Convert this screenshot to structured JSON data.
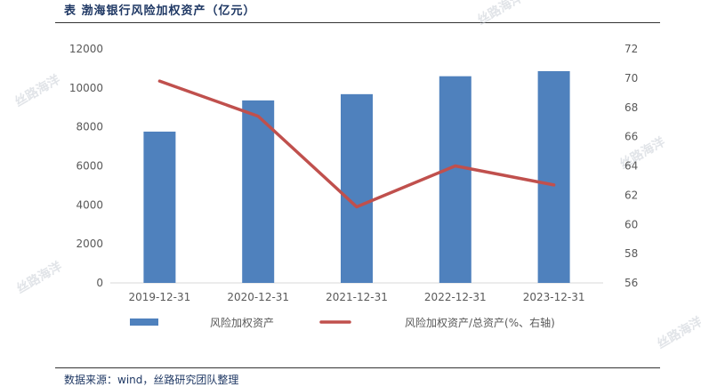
{
  "title": "表  渤海银行风险加权资产（亿元）",
  "source": "数据来源：wind，丝路研究团队整理",
  "watermark": "丝路海洋",
  "colors": {
    "bar": "#4f81bd",
    "line": "#c0504d",
    "axis": "#d9d9d9",
    "text": "#595959"
  },
  "chart_data": {
    "type": "bar",
    "categories": [
      "2019-12-31",
      "2020-12-31",
      "2021-12-31",
      "2022-12-31",
      "2023-12-31"
    ],
    "series": [
      {
        "name": "风险加权资产",
        "type": "bar",
        "axis": "left",
        "values": [
          7760,
          9360,
          9680,
          10600,
          10860
        ]
      },
      {
        "name": "风险加权资产/总资产(%、右轴)",
        "type": "line",
        "axis": "right",
        "values": [
          69.8,
          67.4,
          61.2,
          64.0,
          62.7
        ]
      }
    ],
    "ylim": [
      0,
      12000
    ],
    "yticks": [
      0,
      2000,
      4000,
      6000,
      8000,
      10000,
      12000
    ],
    "y2lim": [
      56,
      72
    ],
    "y2ticks": [
      56,
      58,
      60,
      62,
      64,
      66,
      68,
      70,
      72
    ],
    "legend_position": "bottom",
    "grid": false
  }
}
